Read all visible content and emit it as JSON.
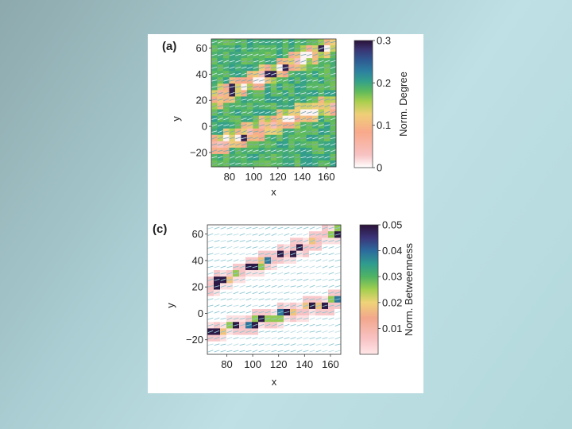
{
  "chart_data": [
    {
      "type": "heatmap",
      "panel_label": "(a)",
      "xlabel": "x",
      "ylabel": "y",
      "xlim": [
        65,
        168
      ],
      "ylim": [
        -31,
        67
      ],
      "x_ticks": [
        80,
        100,
        120,
        140,
        160
      ],
      "x_tick_labels": [
        "80",
        "100",
        "120",
        "140",
        "160"
      ],
      "y_ticks": [
        -20,
        0,
        20,
        40,
        60
      ],
      "y_tick_labels": [
        "−20",
        "0",
        "20",
        "40",
        "60"
      ],
      "colorbar": {
        "title": "Norm. Degree",
        "range": [
          0,
          0.3
        ],
        "ticks": [
          0,
          0.1,
          0.2,
          0.3
        ],
        "tick_labels": [
          "0",
          "0.1",
          "0.2",
          "0.3"
        ]
      },
      "background_value": 0.19,
      "band_lines": [
        {
          "name": "lower band",
          "x0": 65,
          "y0": -15,
          "x1": 168,
          "y1": 18
        },
        {
          "name": "upper band",
          "x0": 65,
          "y0": 20,
          "x1": 168,
          "y1": 64
        }
      ]
    },
    {
      "type": "heatmap",
      "panel_label": "(c)",
      "xlabel": "x",
      "ylabel": "y",
      "xlim": [
        65,
        168
      ],
      "ylim": [
        -31,
        67
      ],
      "x_ticks": [
        80,
        100,
        120,
        140,
        160
      ],
      "x_tick_labels": [
        "80",
        "100",
        "120",
        "140",
        "160"
      ],
      "y_ticks": [
        -20,
        0,
        20,
        40,
        60
      ],
      "y_tick_labels": [
        "−20",
        "0",
        "20",
        "40",
        "60"
      ],
      "colorbar": {
        "title": "Norm. Betweenness",
        "range": [
          0,
          0.05
        ],
        "ticks": [
          0.01,
          0.02,
          0.03,
          0.04,
          0.05
        ],
        "tick_labels": [
          "0.01",
          "0.02",
          "0.03",
          "0.04",
          "0.05"
        ]
      },
      "background_value": 0,
      "band_lines": [
        {
          "name": "lower band",
          "x0": 65,
          "y0": -15,
          "x1": 168,
          "y1": 10
        },
        {
          "name": "upper band",
          "x0": 65,
          "y0": 20,
          "x1": 168,
          "y1": 63
        }
      ]
    }
  ]
}
